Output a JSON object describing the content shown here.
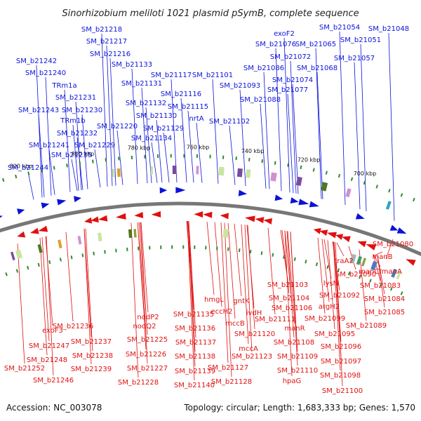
{
  "title": "Sinorhizobium meliloti 1021 plasmid pSymB, complete sequence",
  "footer": {
    "accession": "Accession: NC_003078",
    "summary": "Topology: circular; Length: 1,683,333 bp; Genes: 1,570"
  },
  "colors": {
    "forward": "#0b12d9",
    "reverse": "#e01010",
    "backbone": "#777777",
    "tick_dot": "#2e8a2e"
  },
  "ticks": [
    {
      "label": "820 kbp"
    },
    {
      "label": "800 kbp"
    },
    {
      "label": "780 kbp"
    },
    {
      "label": "760 kbp"
    },
    {
      "label": "740 kbp"
    },
    {
      "label": "720 kbp"
    },
    {
      "label": "700 kbp"
    }
  ],
  "top_labels": [
    "SM_b21218",
    "SM_b21217",
    "SM_b21216",
    "SM_b21242",
    "SM_b21133",
    "SM_b21240",
    "TRm1a",
    "SM_b21131",
    "SM_b21117",
    "SM_b21101",
    "SM_b21231",
    "SM_b21116",
    "SM_b21093",
    "SM_b21132",
    "SM_b21243",
    "SM_b21230",
    "SM_b21115",
    "SM_b21130",
    "TRm1b",
    "nrtA",
    "SM_b21102",
    "SM_b21220",
    "SM_b21129",
    "SM_b21232",
    "SM_b21134",
    "SM_b21241",
    "SM_b21229",
    "SM_b21235",
    "SM_b21244",
    "exoF2",
    "SM_b21054",
    "SM_b21048",
    "SM_b21076",
    "SM_b21065",
    "SM_b21051",
    "SM_b21072",
    "SM_b21057",
    "SM_b21086",
    "SM_b21068",
    "SM_b21074",
    "SM_b21077",
    "SM_b21088"
  ],
  "bottom_labels": [
    "SM_b21080",
    "traA2",
    "manB",
    "manC/manA",
    "SM_b21090",
    "SM_b21083",
    "SM_b21103",
    "lysM",
    "SM_b21084",
    "SM_b21092",
    "SM_b21104",
    "argH2",
    "SM_b21085",
    "SM_b21106",
    "SM_b21099",
    "hmgL",
    "gntK",
    "eccH2",
    "ivdH",
    "SM_b21111",
    "SM_b21089",
    "nodP2",
    "mccB",
    "SM_b21120",
    "manR",
    "SM_b21095",
    "SM_b21135",
    "nodQ2",
    "SM_b21236",
    "SM_b21136",
    "SM_b21108",
    "SM_b21096",
    "exoF3",
    "mccA",
    "SM_b21237",
    "SM_b21225",
    "SM_b21137",
    "SM_b21109",
    "SM_b21247",
    "SM_b21123",
    "SM_b21097",
    "SM_b21238",
    "SM_b21226",
    "SM_b21138",
    "SM_b21248",
    "SM_b21110",
    "SM_b21239",
    "SM_b21227",
    "SM_b21127",
    "SM_b21139",
    "SM_b21098",
    "SM_b21252",
    "SM_b21246",
    "hpaG",
    "SM_b21228",
    "SM_b21128",
    "SM_b21140",
    "SM_b21100"
  ]
}
